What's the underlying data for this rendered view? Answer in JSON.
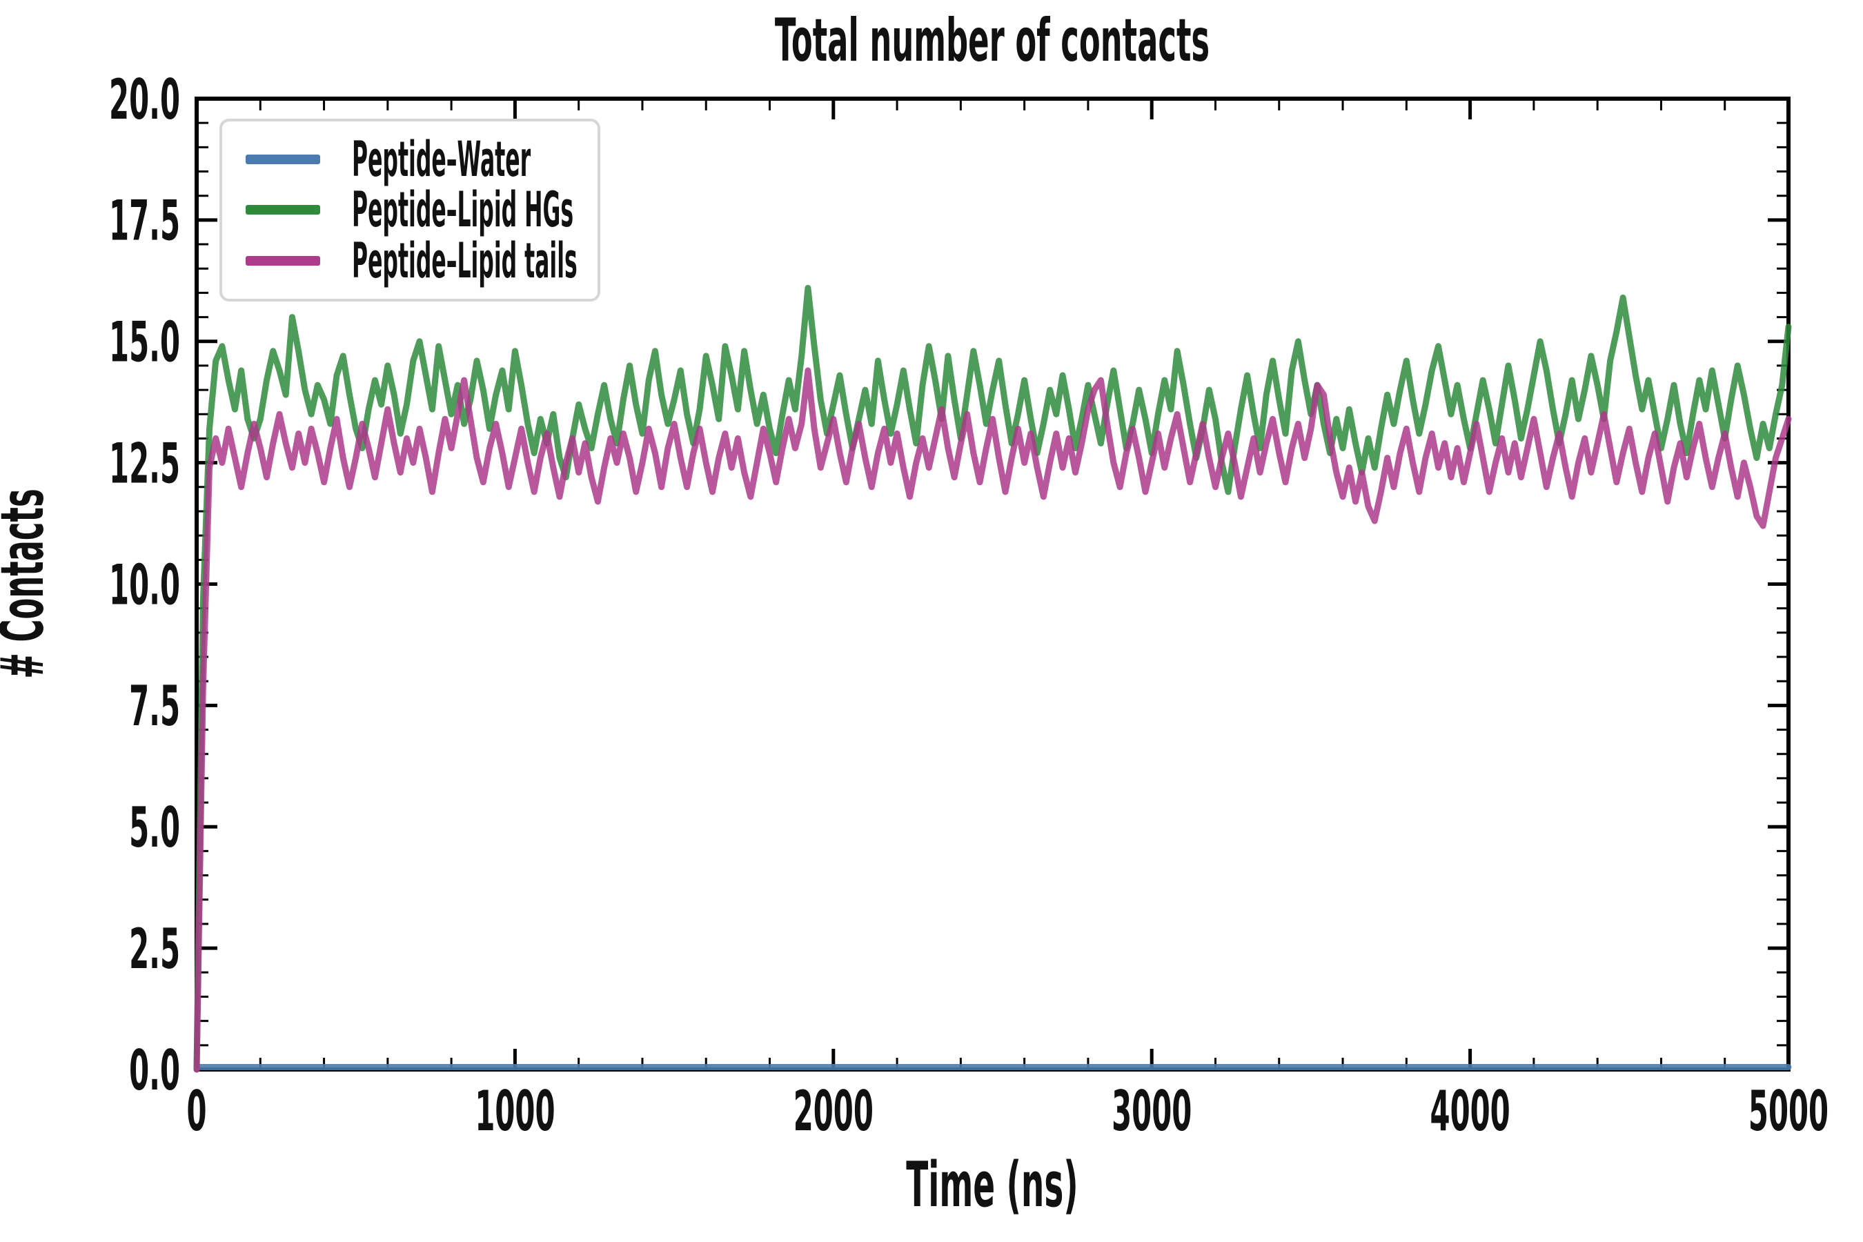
{
  "title": "Total number of contacts",
  "chart_data": {
    "type": "line",
    "title": "Total number of contacts",
    "xlabel": "Time (ns)",
    "ylabel": "# Contacts",
    "xlim": [
      0,
      5000
    ],
    "ylim": [
      0,
      20
    ],
    "grid": false,
    "legend_position": "upper left",
    "x_ticks": {
      "major": [
        0,
        1000,
        2000,
        3000,
        4000,
        5000
      ],
      "labels": [
        "0",
        "1000",
        "2000",
        "3000",
        "4000",
        "5000"
      ],
      "minor_step": 200
    },
    "y_ticks": {
      "major": [
        0,
        2.5,
        5,
        7.5,
        10,
        12.5,
        15,
        17.5,
        20
      ],
      "labels": [
        "0.0",
        "2.5",
        "5.0",
        "7.5",
        "10.0",
        "12.5",
        "15.0",
        "17.5",
        "20.0"
      ],
      "minor_step": 0.5
    },
    "x_start": 0,
    "x_step": 20,
    "series": [
      {
        "name": "Peptide–Water",
        "color": "#4a7bae",
        "opacity": 0.9,
        "x": [
          0,
          5000
        ],
        "values": [
          0.05,
          0.05
        ]
      },
      {
        "name": "Peptide–Lipid HGs",
        "color": "#2e8b3c",
        "opacity": 0.85,
        "values": [
          0.0,
          9.6,
          13.2,
          14.6,
          14.9,
          14.2,
          13.6,
          14.4,
          13.4,
          13.0,
          13.4,
          14.2,
          14.8,
          14.4,
          13.9,
          15.5,
          14.8,
          14.0,
          13.5,
          14.1,
          13.8,
          13.3,
          14.3,
          14.7,
          13.9,
          13.2,
          12.8,
          13.6,
          14.2,
          13.7,
          14.5,
          13.9,
          13.1,
          13.7,
          14.6,
          15.0,
          14.3,
          13.6,
          14.9,
          14.2,
          13.5,
          14.1,
          13.3,
          13.8,
          14.6,
          14.0,
          13.2,
          13.9,
          14.4,
          13.6,
          14.8,
          14.1,
          13.3,
          12.7,
          13.4,
          12.9,
          13.5,
          12.6,
          12.2,
          13.0,
          13.7,
          13.2,
          12.8,
          13.5,
          14.1,
          13.4,
          12.9,
          13.8,
          14.5,
          13.7,
          13.1,
          14.2,
          14.8,
          13.9,
          13.3,
          13.8,
          14.4,
          13.5,
          12.9,
          13.6,
          14.7,
          14.1,
          13.4,
          14.9,
          14.3,
          13.6,
          14.8,
          14.0,
          13.3,
          13.9,
          13.2,
          12.7,
          13.5,
          14.2,
          13.6,
          14.7,
          16.1,
          14.9,
          13.8,
          13.1,
          13.7,
          14.3,
          13.5,
          12.8,
          13.4,
          14.0,
          13.3,
          14.6,
          13.8,
          13.1,
          13.7,
          14.4,
          13.6,
          12.9,
          14.1,
          14.9,
          14.2,
          13.4,
          14.7,
          13.8,
          13.0,
          13.9,
          14.8,
          14.1,
          13.3,
          14.0,
          14.6,
          13.7,
          12.9,
          13.5,
          14.2,
          13.4,
          12.7,
          13.3,
          14.0,
          13.5,
          14.3,
          13.6,
          12.8,
          13.4,
          14.1,
          13.5,
          12.9,
          13.7,
          14.4,
          13.6,
          12.8,
          13.3,
          14.0,
          13.4,
          12.7,
          13.5,
          14.2,
          13.6,
          14.8,
          14.1,
          13.3,
          12.6,
          13.2,
          14.0,
          13.4,
          12.5,
          11.9,
          12.8,
          13.6,
          14.3,
          13.5,
          12.8,
          13.9,
          14.6,
          13.8,
          13.1,
          14.4,
          15.0,
          14.2,
          13.5,
          14.1,
          13.3,
          12.7,
          13.4,
          12.8,
          13.6,
          12.9,
          12.3,
          13.0,
          12.4,
          13.2,
          13.9,
          13.3,
          14.0,
          14.6,
          13.8,
          13.1,
          13.7,
          14.4,
          14.9,
          14.2,
          13.5,
          14.1,
          13.4,
          12.8,
          13.5,
          14.2,
          13.6,
          12.9,
          13.7,
          14.5,
          13.8,
          13.0,
          13.6,
          14.3,
          15.0,
          14.4,
          13.6,
          12.9,
          13.5,
          14.2,
          13.4,
          14.0,
          14.7,
          14.1,
          13.4,
          14.6,
          15.2,
          15.9,
          15.1,
          14.3,
          13.6,
          14.2,
          13.5,
          12.8,
          13.4,
          14.1,
          13.3,
          12.7,
          13.5,
          14.2,
          13.6,
          14.4,
          13.7,
          13.0,
          13.8,
          14.5,
          13.9,
          13.2,
          12.6,
          13.3,
          12.8,
          13.5,
          14.1,
          15.3
        ]
      },
      {
        "name": "Peptide–Lipid tails",
        "color": "#ad3a8b",
        "opacity": 0.85,
        "values": [
          0.0,
          7.8,
          12.4,
          13.0,
          12.5,
          13.2,
          12.6,
          12.0,
          12.7,
          13.3,
          12.8,
          12.2,
          12.9,
          13.5,
          12.9,
          12.4,
          13.1,
          12.5,
          13.2,
          12.7,
          12.1,
          12.8,
          13.4,
          12.6,
          12.0,
          12.6,
          13.3,
          12.8,
          12.2,
          12.9,
          13.6,
          12.9,
          12.3,
          13.0,
          12.5,
          13.2,
          12.6,
          11.9,
          12.7,
          13.4,
          12.8,
          13.5,
          14.2,
          13.4,
          12.6,
          12.1,
          12.8,
          13.3,
          12.7,
          12.0,
          12.6,
          13.2,
          12.5,
          11.9,
          12.6,
          13.1,
          12.4,
          11.8,
          12.5,
          13.0,
          12.3,
          12.9,
          12.2,
          11.7,
          12.4,
          13.0,
          12.5,
          13.1,
          12.6,
          11.9,
          12.5,
          13.2,
          12.7,
          12.0,
          12.8,
          13.3,
          12.6,
          12.0,
          12.7,
          13.2,
          12.5,
          11.9,
          12.6,
          13.1,
          12.4,
          13.0,
          12.3,
          11.8,
          12.5,
          13.2,
          12.7,
          12.1,
          12.8,
          13.4,
          12.8,
          13.3,
          14.4,
          13.2,
          12.4,
          12.9,
          13.4,
          12.7,
          12.1,
          12.8,
          13.3,
          12.6,
          12.0,
          12.7,
          13.2,
          12.5,
          13.1,
          12.4,
          11.8,
          12.5,
          13.0,
          12.4,
          13.0,
          13.6,
          12.8,
          12.2,
          12.9,
          13.5,
          12.7,
          12.1,
          12.8,
          13.4,
          12.6,
          11.9,
          12.6,
          13.2,
          12.5,
          13.1,
          12.4,
          11.8,
          12.5,
          13.1,
          12.4,
          13.0,
          12.3,
          12.9,
          13.6,
          14.0,
          14.2,
          13.3,
          12.5,
          12.0,
          12.7,
          13.2,
          12.6,
          11.9,
          12.5,
          13.1,
          12.4,
          13.0,
          13.5,
          12.8,
          12.1,
          12.7,
          13.3,
          12.6,
          12.0,
          12.6,
          13.1,
          12.5,
          11.8,
          12.4,
          13.0,
          12.3,
          12.9,
          13.4,
          12.7,
          12.1,
          12.8,
          13.3,
          12.6,
          13.2,
          14.1,
          13.9,
          13.0,
          12.3,
          11.8,
          12.4,
          11.7,
          12.3,
          11.6,
          11.3,
          11.9,
          12.6,
          12.0,
          12.7,
          13.2,
          12.5,
          11.9,
          12.6,
          13.1,
          12.4,
          12.9,
          12.2,
          12.8,
          12.1,
          12.7,
          13.3,
          12.6,
          11.9,
          12.5,
          13.0,
          12.3,
          12.9,
          12.2,
          12.8,
          13.4,
          12.7,
          12.0,
          12.6,
          13.1,
          12.4,
          11.8,
          12.5,
          13.0,
          12.3,
          12.9,
          13.5,
          12.8,
          12.1,
          12.7,
          13.2,
          12.5,
          11.9,
          12.6,
          13.1,
          12.4,
          11.7,
          12.4,
          12.9,
          12.2,
          12.8,
          13.3,
          12.6,
          12.0,
          12.6,
          13.1,
          12.4,
          11.8,
          12.5,
          12.0,
          11.4,
          11.2,
          11.9,
          12.6,
          13.0,
          13.4
        ]
      }
    ]
  }
}
